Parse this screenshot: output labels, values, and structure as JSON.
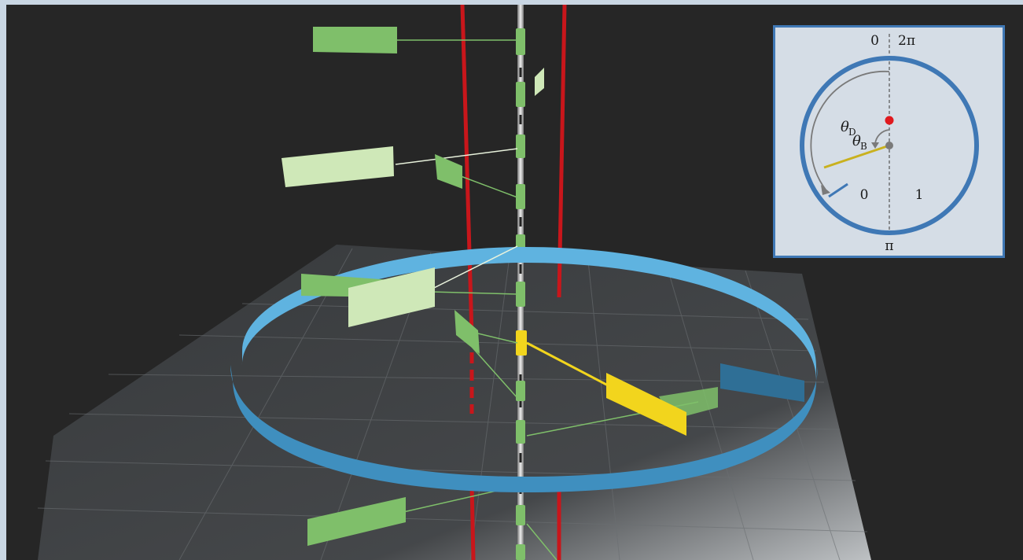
{
  "inset": {
    "top_left_label": "0",
    "top_right_label": "2π",
    "bottom_label": "π",
    "region_left_label": "0",
    "region_right_label": "1",
    "theta_d_symbol": "θ",
    "theta_d_subscript": "D",
    "theta_b_symbol": "θ",
    "theta_b_subscript": "B",
    "colors": {
      "circle": "#3f78b5",
      "red_dot": "#e0191e",
      "yellow_line": "#c9b11f",
      "gray_arrow": "#7a7a7a"
    }
  },
  "scene": {
    "colors": {
      "background": "#262626",
      "ring": "#5fb3e0",
      "red_rods": "#c8161b",
      "green_panels": "#7fbf6a",
      "light_panels": "#cfe8b8",
      "yellow_panel": "#f2d51d"
    }
  }
}
